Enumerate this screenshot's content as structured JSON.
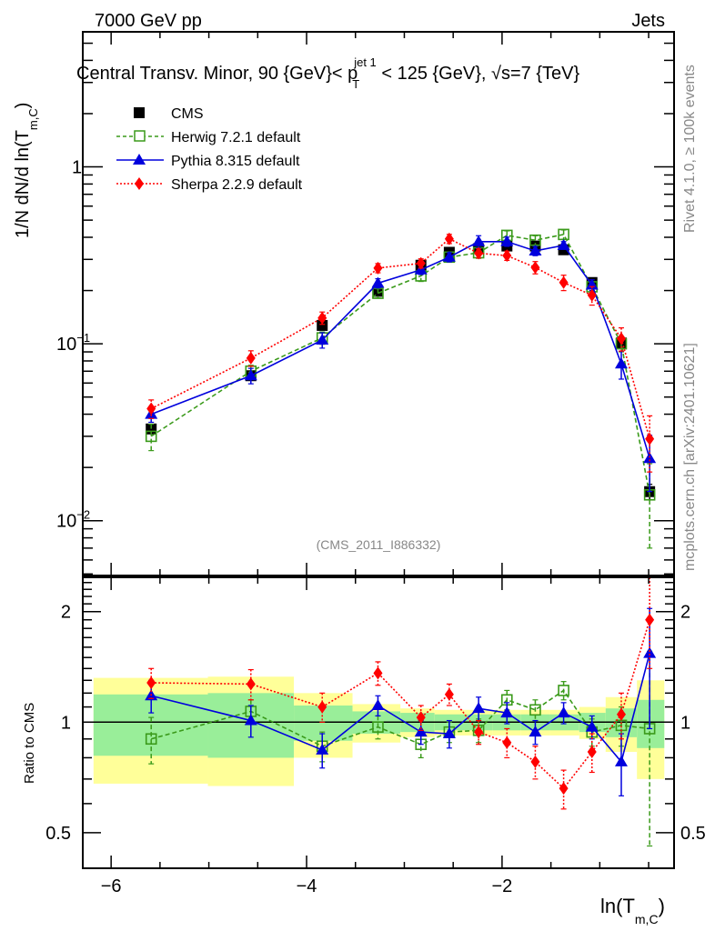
{
  "header": {
    "left_label": "7000 GeV pp",
    "right_label": "Jets"
  },
  "side_labels": {
    "rivet": "Rivet 4.1.0, ≥ 100k events",
    "mcplots": "mcplots.cern.ch [arXiv:2401.10621]"
  },
  "chart_data": [
    {
      "type": "line",
      "panel": "main",
      "title": "Central Transv. Minor, 90 {GeV}< p_T^{jet 1} < 125 {GeV}, √s=7 {TeV}",
      "title_parts": {
        "pre": "Central Transv. Minor, 90 {GeV}< p",
        "sub": "T",
        "sup": "jet 1",
        "post": " < 125 {GeV}, √s=7 {TeV}"
      },
      "ylabel": "1/N   dN/d ln(T_m,C)",
      "ylabel_parts": {
        "pre": "1/N    dN/d ln(T",
        "sub": "m,C",
        "post": ")"
      },
      "yscale": "log",
      "xlim": [
        -6.29,
        -0.24
      ],
      "ylim": [
        0.0049,
        5.8
      ],
      "yticks": [
        {
          "value": 1,
          "label": "1",
          "exp": ""
        },
        {
          "value": 0.1,
          "label": "10",
          "exp": "−1"
        },
        {
          "value": 0.01,
          "label": "10",
          "exp": "−2"
        }
      ],
      "watermark": "(CMS_2011_I886332)",
      "legend_position": "top-left",
      "x": [
        -5.59,
        -4.57,
        -3.84,
        -3.27,
        -2.83,
        -2.54,
        -2.24,
        -1.95,
        -1.66,
        -1.37,
        -1.08,
        -0.78,
        -0.49
      ],
      "series": [
        {
          "name": "CMS",
          "color": "#000000",
          "marker": "square-filled",
          "line": "none",
          "values": [
            0.033,
            0.066,
            0.127,
            0.198,
            0.278,
            0.329,
            0.345,
            0.357,
            0.357,
            0.34,
            0.222,
            0.101,
            0.0146
          ],
          "rel_err": [
            0.05,
            0.05,
            0.05,
            0.04,
            0.04,
            0.04,
            0.04,
            0.04,
            0.04,
            0.04,
            0.05,
            0.06,
            0.1
          ]
        },
        {
          "name": "Herwig 7.2.1 default",
          "color": "#3a9a1a",
          "marker": "square-open",
          "line": "dashed",
          "values": [
            0.03,
            0.07,
            0.108,
            0.193,
            0.242,
            0.309,
            0.327,
            0.41,
            0.385,
            0.415,
            0.21,
            0.1,
            0.014
          ],
          "rel_err": [
            0.17,
            0.08,
            0.08,
            0.06,
            0.07,
            0.06,
            0.07,
            0.06,
            0.06,
            0.06,
            0.07,
            0.1,
            0.5
          ]
        },
        {
          "name": "Pythia 8.315 default",
          "color": "#0000dd",
          "marker": "triangle-filled",
          "line": "solid",
          "values": [
            0.04,
            0.066,
            0.105,
            0.22,
            0.262,
            0.309,
            0.378,
            0.378,
            0.335,
            0.36,
            0.215,
            0.077,
            0.0225
          ],
          "rel_err": [
            0.1,
            0.1,
            0.1,
            0.06,
            0.06,
            0.06,
            0.08,
            0.06,
            0.06,
            0.05,
            0.07,
            0.18,
            0.35
          ]
        },
        {
          "name": "Sherpa 2.2.9 default",
          "color": "#ff0000",
          "marker": "diamond-filled",
          "line": "dotted",
          "values": [
            0.043,
            0.083,
            0.14,
            0.268,
            0.285,
            0.392,
            0.325,
            0.315,
            0.27,
            0.222,
            0.188,
            0.107,
            0.029
          ],
          "rel_err": [
            0.12,
            0.1,
            0.08,
            0.06,
            0.06,
            0.06,
            0.06,
            0.06,
            0.08,
            0.1,
            0.12,
            0.15,
            0.35
          ]
        }
      ]
    },
    {
      "type": "line",
      "panel": "ratio",
      "ylabel": "Ratio to CMS",
      "yscale": "log",
      "xlabel": "ln(T_m,C)",
      "xlabel_parts": {
        "pre": "ln(T",
        "sub": "m,C",
        "post": ")"
      },
      "xlim": [
        -6.29,
        -0.24
      ],
      "ylim": [
        0.4,
        2.48
      ],
      "xticks": [
        -6,
        -4,
        -2
      ],
      "xtick_labels": [
        "−6",
        "−4",
        "−2"
      ],
      "yticks": [
        0.5,
        1,
        2
      ],
      "ytick_labels": [
        "0.5",
        "1",
        "2"
      ],
      "reference_line": 1,
      "bin_edges": [
        -6.18,
        -5.01,
        -4.13,
        -3.53,
        -3.04,
        -2.69,
        -2.39,
        -2.1,
        -1.81,
        -1.51,
        -1.21,
        -0.94,
        -0.62,
        -0.34
      ],
      "band_stat": [
        0.19,
        0.2,
        0.11,
        0.07,
        0.06,
        0.05,
        0.05,
        0.05,
        0.05,
        0.05,
        0.06,
        0.09,
        0.15
      ],
      "band_total": [
        0.32,
        0.33,
        0.2,
        0.12,
        0.09,
        0.08,
        0.08,
        0.08,
        0.08,
        0.08,
        0.1,
        0.17,
        0.3
      ],
      "x": [
        -5.59,
        -4.57,
        -3.84,
        -3.27,
        -2.83,
        -2.54,
        -2.24,
        -1.95,
        -1.66,
        -1.37,
        -1.08,
        -0.78,
        -0.49
      ],
      "series": [
        {
          "name": "Herwig 7.2.1 default",
          "color": "#3a9a1a",
          "marker": "square-open",
          "line": "dashed",
          "values": [
            0.9,
            1.07,
            0.86,
            0.97,
            0.87,
            0.94,
            0.95,
            1.15,
            1.08,
            1.22,
            0.94,
            0.98,
            0.96
          ],
          "err_lo": [
            0.13,
            0.08,
            0.08,
            0.07,
            0.07,
            0.06,
            0.07,
            0.07,
            0.07,
            0.07,
            0.08,
            0.12,
            0.5
          ],
          "err_hi": [
            0.13,
            0.08,
            0.08,
            0.07,
            0.07,
            0.06,
            0.07,
            0.07,
            0.07,
            0.07,
            0.08,
            0.12,
            0.6
          ]
        },
        {
          "name": "Pythia 8.315 default",
          "color": "#0000dd",
          "marker": "triangle-filled",
          "line": "solid",
          "values": [
            1.18,
            1.01,
            0.84,
            1.11,
            0.94,
            0.93,
            1.09,
            1.06,
            0.94,
            1.06,
            0.97,
            0.78,
            1.54
          ],
          "err_lo": [
            0.12,
            0.1,
            0.09,
            0.07,
            0.07,
            0.08,
            0.08,
            0.07,
            0.07,
            0.07,
            0.07,
            0.15,
            0.58
          ],
          "err_hi": [
            0.12,
            0.1,
            0.09,
            0.07,
            0.07,
            0.08,
            0.08,
            0.07,
            0.07,
            0.07,
            0.07,
            0.15,
            0.5
          ]
        },
        {
          "name": "Sherpa 2.2.9 default",
          "color": "#ff0000",
          "marker": "diamond-filled",
          "line": "dotted",
          "values": [
            1.28,
            1.27,
            1.1,
            1.36,
            1.03,
            1.19,
            0.94,
            0.88,
            0.78,
            0.66,
            0.83,
            1.05,
            1.9
          ],
          "err_lo": [
            0.12,
            0.12,
            0.1,
            0.1,
            0.08,
            0.08,
            0.07,
            0.08,
            0.08,
            0.08,
            0.1,
            0.15,
            0.5
          ],
          "err_hi": [
            0.12,
            0.12,
            0.1,
            0.1,
            0.08,
            0.08,
            0.07,
            0.08,
            0.08,
            0.08,
            0.1,
            0.15,
            0.6
          ]
        }
      ]
    }
  ],
  "colors": {
    "band_stat": "#99ee99",
    "band_total": "#ffff99",
    "frame": "#000000",
    "watermark": "#888888"
  }
}
